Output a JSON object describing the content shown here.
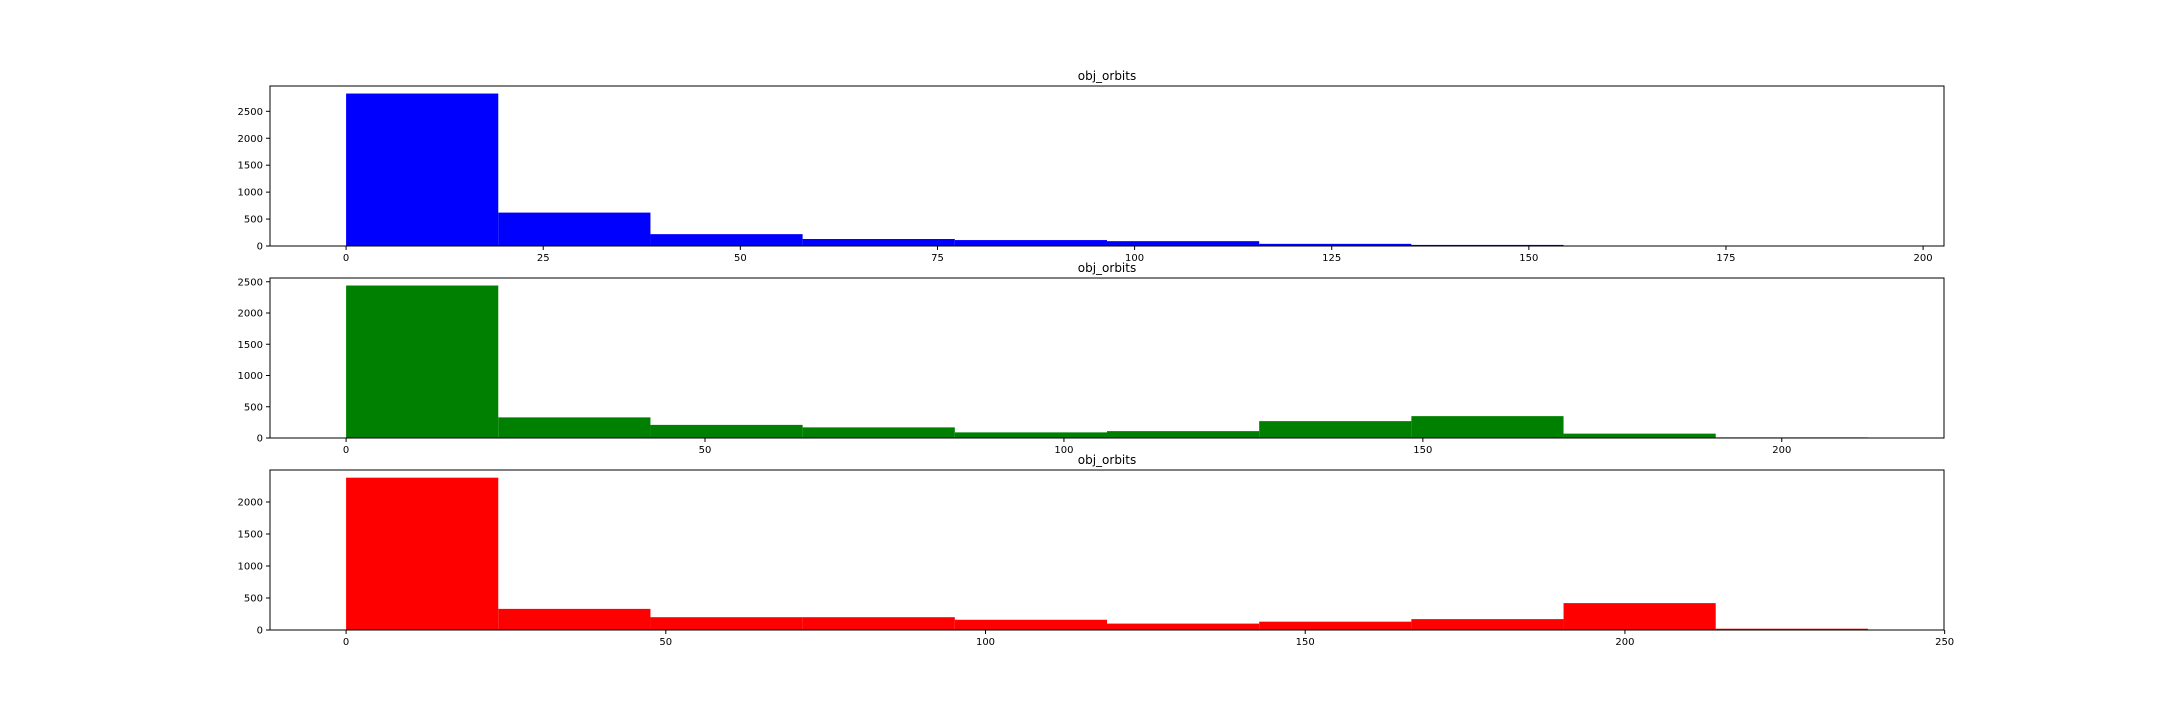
{
  "chart_data": [
    {
      "type": "bar",
      "title": "obj_orbits",
      "color": "#0000ff",
      "bin_edges": [
        0,
        19.3,
        38.6,
        57.9,
        77.2,
        96.5,
        115.8,
        135.1,
        154.4,
        173.7,
        193.0
      ],
      "values": [
        2830,
        620,
        220,
        130,
        110,
        90,
        40,
        20,
        0,
        0
      ],
      "xlim": [
        -9.65,
        202.65
      ],
      "ylim": [
        0,
        2970
      ],
      "xticks": [
        0,
        25,
        50,
        75,
        100,
        125,
        150,
        175,
        200
      ],
      "yticks": [
        0,
        500,
        1000,
        1500,
        2000,
        2500
      ],
      "xlabel": "",
      "ylabel": ""
    },
    {
      "type": "bar",
      "title": "obj_orbits",
      "color": "#008000",
      "bin_edges": [
        0,
        21.2,
        42.4,
        63.6,
        84.8,
        106.0,
        127.2,
        148.4,
        169.6,
        190.8,
        212.0
      ],
      "values": [
        2440,
        330,
        210,
        170,
        90,
        110,
        270,
        350,
        70,
        10
      ],
      "xlim": [
        -10.6,
        222.6
      ],
      "ylim": [
        0,
        2560
      ],
      "xticks": [
        0,
        50,
        100,
        150,
        200
      ],
      "yticks": [
        0,
        500,
        1000,
        1500,
        2000,
        2500
      ],
      "xlabel": "",
      "ylabel": ""
    },
    {
      "type": "bar",
      "title": "obj_orbits",
      "color": "#ff0000",
      "bin_edges": [
        0,
        23.8,
        47.6,
        71.4,
        95.2,
        119.0,
        142.8,
        166.6,
        190.4,
        214.2,
        238.0
      ],
      "values": [
        2380,
        330,
        200,
        200,
        160,
        100,
        130,
        170,
        420,
        20
      ],
      "xlim": [
        -11.9,
        249.9
      ],
      "ylim": [
        0,
        2500
      ],
      "xticks": [
        0,
        50,
        100,
        150,
        200,
        250
      ],
      "yticks": [
        0,
        500,
        1000,
        1500,
        2000
      ],
      "xlabel": "",
      "ylabel": ""
    }
  ]
}
